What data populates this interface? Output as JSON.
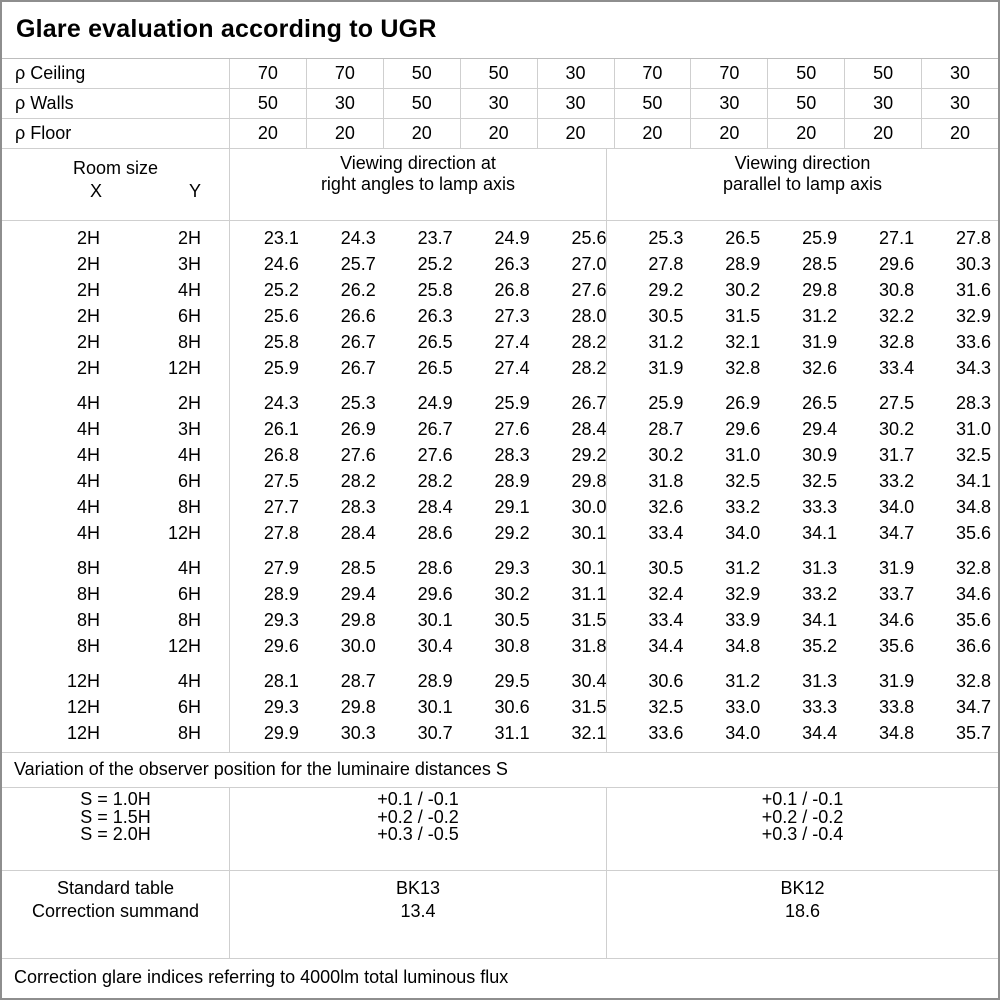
{
  "title": "Glare evaluation according to UGR",
  "colors": {
    "outer_border": "#8e8e8e",
    "gridline": "#cfcfcf",
    "text": "#000000",
    "background": "#ffffff"
  },
  "reflectances": {
    "rows": [
      {
        "label": "ρ Ceiling",
        "values": [
          "70",
          "70",
          "50",
          "50",
          "30",
          "70",
          "70",
          "50",
          "50",
          "30"
        ]
      },
      {
        "label": "ρ Walls",
        "values": [
          "50",
          "30",
          "50",
          "30",
          "30",
          "50",
          "30",
          "50",
          "30",
          "30"
        ]
      },
      {
        "label": "ρ Floor",
        "values": [
          "20",
          "20",
          "20",
          "20",
          "20",
          "20",
          "20",
          "20",
          "20",
          "20"
        ]
      }
    ]
  },
  "header": {
    "room_size_label": "Room size",
    "x_label": "X",
    "y_label": "Y",
    "left_direction_line1": "Viewing direction at",
    "left_direction_line2": "right angles to lamp axis",
    "right_direction_line1": "Viewing direction",
    "right_direction_line2": "parallel to lamp axis"
  },
  "ugr": {
    "groups": [
      {
        "rows": [
          {
            "x": "2H",
            "y": "2H",
            "values": [
              "23.1",
              "24.3",
              "23.7",
              "24.9",
              "25.6",
              "25.3",
              "26.5",
              "25.9",
              "27.1",
              "27.8"
            ]
          },
          {
            "x": "2H",
            "y": "3H",
            "values": [
              "24.6",
              "25.7",
              "25.2",
              "26.3",
              "27.0",
              "27.8",
              "28.9",
              "28.5",
              "29.6",
              "30.3"
            ]
          },
          {
            "x": "2H",
            "y": "4H",
            "values": [
              "25.2",
              "26.2",
              "25.8",
              "26.8",
              "27.6",
              "29.2",
              "30.2",
              "29.8",
              "30.8",
              "31.6"
            ]
          },
          {
            "x": "2H",
            "y": "6H",
            "values": [
              "25.6",
              "26.6",
              "26.3",
              "27.3",
              "28.0",
              "30.5",
              "31.5",
              "31.2",
              "32.2",
              "32.9"
            ]
          },
          {
            "x": "2H",
            "y": "8H",
            "values": [
              "25.8",
              "26.7",
              "26.5",
              "27.4",
              "28.2",
              "31.2",
              "32.1",
              "31.9",
              "32.8",
              "33.6"
            ]
          },
          {
            "x": "2H",
            "y": "12H",
            "values": [
              "25.9",
              "26.7",
              "26.5",
              "27.4",
              "28.2",
              "31.9",
              "32.8",
              "32.6",
              "33.4",
              "34.3"
            ]
          }
        ]
      },
      {
        "rows": [
          {
            "x": "4H",
            "y": "2H",
            "values": [
              "24.3",
              "25.3",
              "24.9",
              "25.9",
              "26.7",
              "25.9",
              "26.9",
              "26.5",
              "27.5",
              "28.3"
            ]
          },
          {
            "x": "4H",
            "y": "3H",
            "values": [
              "26.1",
              "26.9",
              "26.7",
              "27.6",
              "28.4",
              "28.7",
              "29.6",
              "29.4",
              "30.2",
              "31.0"
            ]
          },
          {
            "x": "4H",
            "y": "4H",
            "values": [
              "26.8",
              "27.6",
              "27.6",
              "28.3",
              "29.2",
              "30.2",
              "31.0",
              "30.9",
              "31.7",
              "32.5"
            ]
          },
          {
            "x": "4H",
            "y": "6H",
            "values": [
              "27.5",
              "28.2",
              "28.2",
              "28.9",
              "29.8",
              "31.8",
              "32.5",
              "32.5",
              "33.2",
              "34.1"
            ]
          },
          {
            "x": "4H",
            "y": "8H",
            "values": [
              "27.7",
              "28.3",
              "28.4",
              "29.1",
              "30.0",
              "32.6",
              "33.2",
              "33.3",
              "34.0",
              "34.8"
            ]
          },
          {
            "x": "4H",
            "y": "12H",
            "values": [
              "27.8",
              "28.4",
              "28.6",
              "29.2",
              "30.1",
              "33.4",
              "34.0",
              "34.1",
              "34.7",
              "35.6"
            ]
          }
        ]
      },
      {
        "rows": [
          {
            "x": "8H",
            "y": "4H",
            "values": [
              "27.9",
              "28.5",
              "28.6",
              "29.3",
              "30.1",
              "30.5",
              "31.2",
              "31.3",
              "31.9",
              "32.8"
            ]
          },
          {
            "x": "8H",
            "y": "6H",
            "values": [
              "28.9",
              "29.4",
              "29.6",
              "30.2",
              "31.1",
              "32.4",
              "32.9",
              "33.2",
              "33.7",
              "34.6"
            ]
          },
          {
            "x": "8H",
            "y": "8H",
            "values": [
              "29.3",
              "29.8",
              "30.1",
              "30.5",
              "31.5",
              "33.4",
              "33.9",
              "34.1",
              "34.6",
              "35.6"
            ]
          },
          {
            "x": "8H",
            "y": "12H",
            "values": [
              "29.6",
              "30.0",
              "30.4",
              "30.8",
              "31.8",
              "34.4",
              "34.8",
              "35.2",
              "35.6",
              "36.6"
            ]
          }
        ]
      },
      {
        "rows": [
          {
            "x": "12H",
            "y": "4H",
            "values": [
              "28.1",
              "28.7",
              "28.9",
              "29.5",
              "30.4",
              "30.6",
              "31.2",
              "31.3",
              "31.9",
              "32.8"
            ]
          },
          {
            "x": "12H",
            "y": "6H",
            "values": [
              "29.3",
              "29.8",
              "30.1",
              "30.6",
              "31.5",
              "32.5",
              "33.0",
              "33.3",
              "33.8",
              "34.7"
            ]
          },
          {
            "x": "12H",
            "y": "8H",
            "values": [
              "29.9",
              "30.3",
              "30.7",
              "31.1",
              "32.1",
              "33.6",
              "34.0",
              "34.4",
              "34.8",
              "35.7"
            ]
          }
        ]
      }
    ]
  },
  "variation_note": "Variation of the observer position for the luminaire distances S",
  "s_block": {
    "labels": [
      "S = 1.0H",
      "S = 1.5H",
      "S = 2.0H"
    ],
    "right_angles": [
      "+0.1 / -0.1",
      "+0.2 / -0.2",
      "+0.3 / -0.5"
    ],
    "parallel": [
      "+0.1 / -0.1",
      "+0.2 / -0.2",
      "+0.3 / -0.4"
    ]
  },
  "summary": {
    "standard_table_label": "Standard table",
    "correction_summand_label": "Correction summand",
    "right_angles_standard_table": "BK13",
    "right_angles_correction_summand": "13.4",
    "parallel_standard_table": "BK12",
    "parallel_correction_summand": "18.6"
  },
  "footer_note": "Correction glare indices referring to 4000lm total luminous flux"
}
